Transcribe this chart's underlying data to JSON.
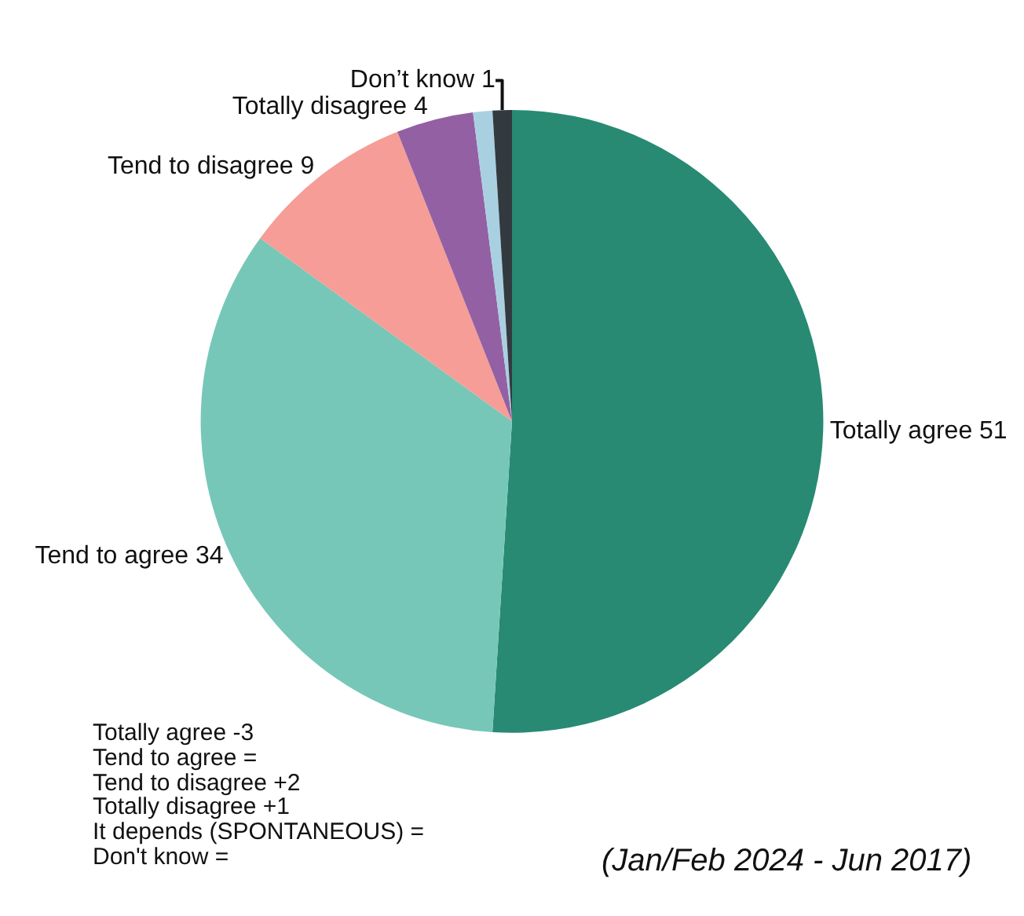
{
  "chart_data": {
    "type": "pie",
    "categories": [
      "Totally agree",
      "Tend to agree",
      "Tend to disagree",
      "Totally disagree",
      null,
      "Don’t know"
    ],
    "values": [
      51,
      34,
      9,
      4,
      1,
      1
    ],
    "value_labels": [
      "51",
      "34",
      "9",
      "4",
      null,
      "1"
    ],
    "colors": [
      "#288a73",
      "#76c7b8",
      "#f59d96",
      "#9360a4",
      "#a9d0e0",
      "#333a3f"
    ],
    "legend": false,
    "annotations": [
      "Totally agree -3",
      "Tend to agree =",
      "Tend to disagree +2",
      "Totally disagree +1",
      "It depends (SPONTANEOUS) =",
      "Don't know =",
      "(Jan/Feb 2024 - Jun 2017)"
    ]
  }
}
